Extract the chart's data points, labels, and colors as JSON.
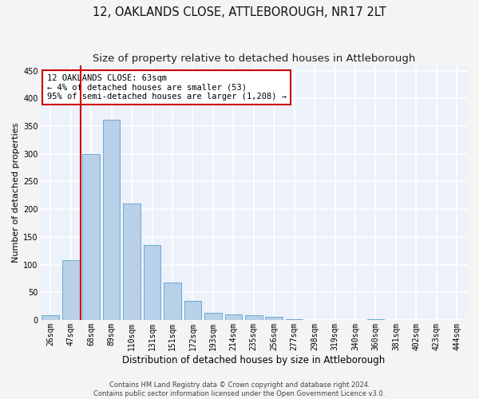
{
  "title": "12, OAKLANDS CLOSE, ATTLEBOROUGH, NR17 2LT",
  "subtitle": "Size of property relative to detached houses in Attleborough",
  "xlabel": "Distribution of detached houses by size in Attleborough",
  "ylabel": "Number of detached properties",
  "bar_color": "#b8d0e8",
  "bar_edgecolor": "#6aaad4",
  "bar_linewidth": 0.7,
  "categories": [
    "26sqm",
    "47sqm",
    "68sqm",
    "89sqm",
    "110sqm",
    "131sqm",
    "151sqm",
    "172sqm",
    "193sqm",
    "214sqm",
    "235sqm",
    "256sqm",
    "277sqm",
    "298sqm",
    "319sqm",
    "340sqm",
    "360sqm",
    "381sqm",
    "402sqm",
    "423sqm",
    "444sqm"
  ],
  "values": [
    8,
    108,
    300,
    362,
    210,
    135,
    68,
    35,
    13,
    10,
    8,
    5,
    2,
    0,
    0,
    0,
    2,
    0,
    0,
    0,
    0
  ],
  "ylim": [
    0,
    460
  ],
  "yticks": [
    0,
    50,
    100,
    150,
    200,
    250,
    300,
    350,
    400,
    450
  ],
  "red_line_x": 1.5,
  "red_line_color": "#cc0000",
  "annotation_text": "12 OAKLANDS CLOSE: 63sqm\n← 4% of detached houses are smaller (53)\n95% of semi-detached houses are larger (1,208) →",
  "footnote": "Contains HM Land Registry data © Crown copyright and database right 2024.\nContains public sector information licensed under the Open Government Licence v3.0.",
  "background_color": "#edf2fa",
  "grid_color": "#ffffff",
  "fig_bg_color": "#f4f4f4",
  "title_fontsize": 10.5,
  "subtitle_fontsize": 9.5,
  "xlabel_fontsize": 8.5,
  "ylabel_fontsize": 8,
  "tick_fontsize": 7,
  "annotation_fontsize": 7.5,
  "footnote_fontsize": 6
}
